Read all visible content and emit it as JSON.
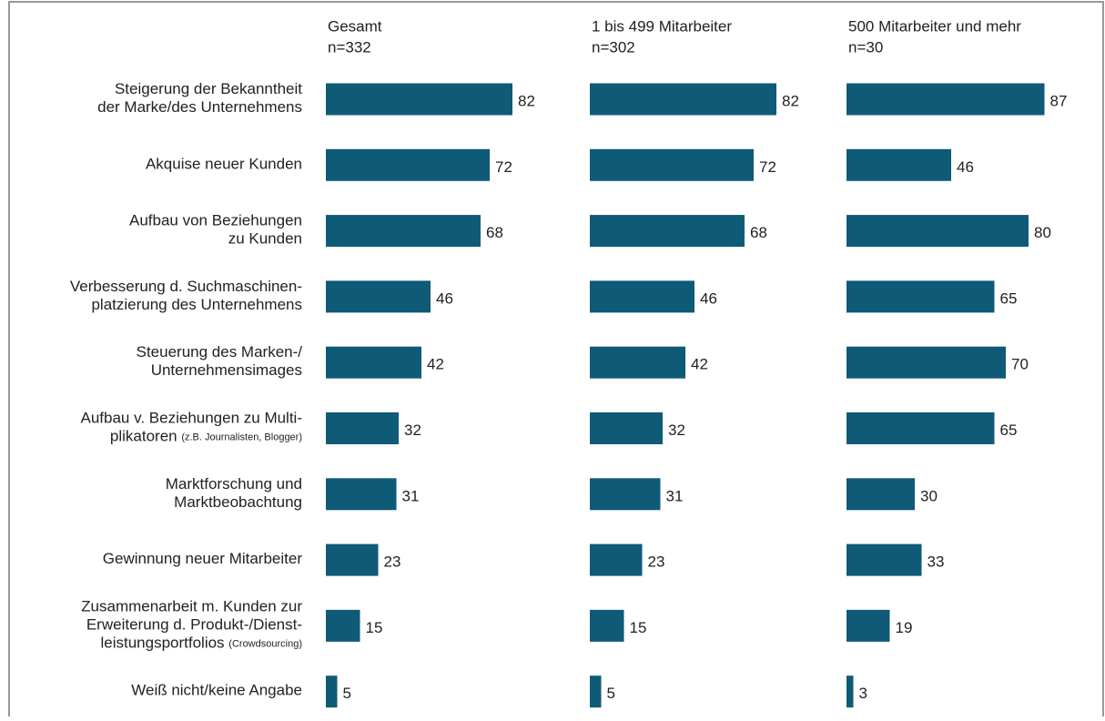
{
  "chart_data": {
    "type": "bar",
    "categories": [
      [
        "Steigerung der Bekanntheit",
        "der Marke/des Unternehmens"
      ],
      [
        "Akquise neuer Kunden"
      ],
      [
        "Aufbau von Beziehungen",
        "zu Kunden"
      ],
      [
        "Verbesserung d. Suchmaschinen-",
        "platzierung des Unternehmens"
      ],
      [
        "Steuerung des Marken-/",
        "Unternehmensimages"
      ],
      [
        "Aufbau v. Beziehungen zu Multi-",
        "plikatoren (z.B. Journalisten, Blogger)"
      ],
      [
        "Marktforschung und",
        "Marktbeobachtung"
      ],
      [
        "Gewinnung neuer Mitarbeiter"
      ],
      [
        "Zusammenarbeit m. Kunden zur",
        "Erweiterung d. Produkt-/Dienst-",
        "leistungsportfolios (Crowdsourcing)"
      ],
      [
        "Weiß nicht/keine Angabe"
      ]
    ],
    "series": [
      {
        "name": "Gesamt",
        "n": "n=332",
        "color": "#0f5a77",
        "values": [
          82,
          72,
          68,
          46,
          42,
          32,
          31,
          23,
          15,
          5
        ]
      },
      {
        "name": "1 bis 499 Mitarbeiter",
        "n": "n=302",
        "color": "#0f5a77",
        "values": [
          82,
          72,
          68,
          46,
          42,
          32,
          31,
          23,
          15,
          5
        ]
      },
      {
        "name": "500 Mitarbeiter und mehr",
        "n": "n=30",
        "color": "#0f5a77",
        "values": [
          87,
          46,
          80,
          65,
          70,
          65,
          30,
          33,
          19,
          3
        ]
      }
    ]
  }
}
